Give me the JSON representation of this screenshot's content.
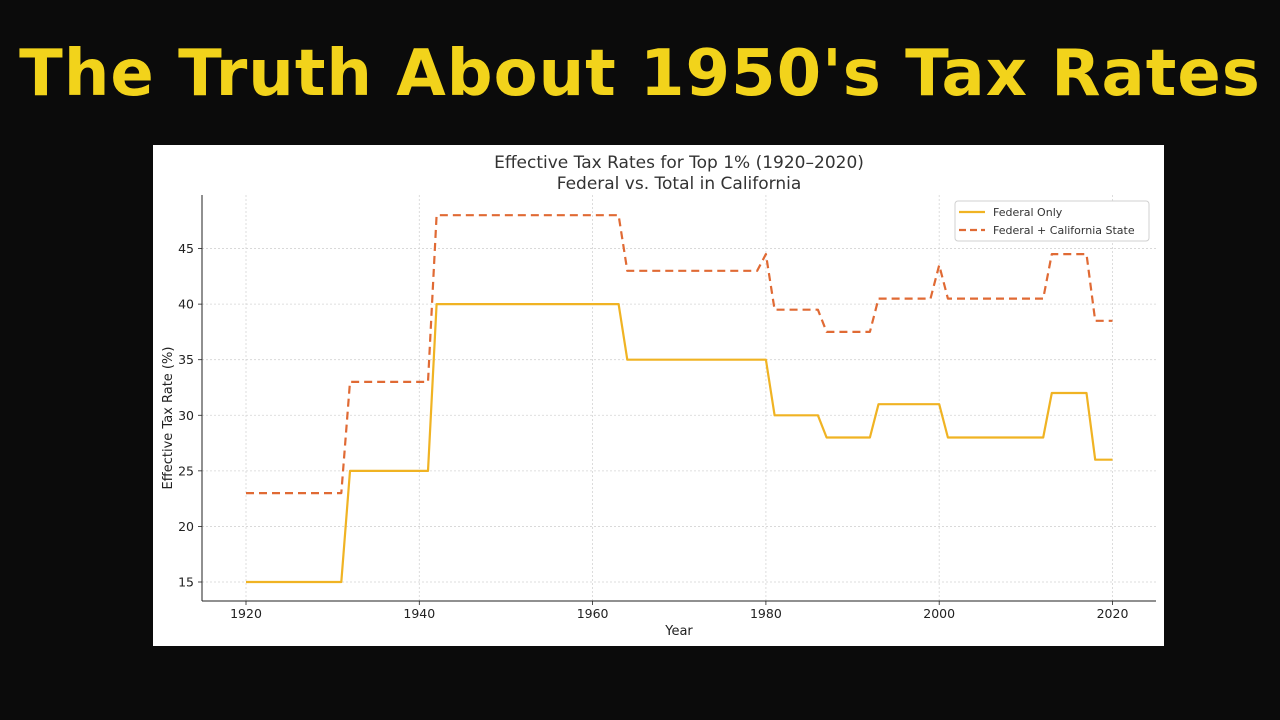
{
  "headline": "The Truth About 1950's Tax Rates",
  "chart_data": {
    "type": "line",
    "title": "Effective Tax Rates for Top 1% (1920–2020)",
    "subtitle": "Federal vs. Total in California",
    "xlabel": "Year",
    "ylabel": "Effective Tax Rate (%)",
    "xlim": [
      1915,
      2025
    ],
    "ylim": [
      13.5,
      49.5
    ],
    "xticks": [
      1920,
      1940,
      1960,
      1980,
      2000,
      2020
    ],
    "yticks": [
      15,
      20,
      25,
      30,
      35,
      40,
      45
    ],
    "grid": true,
    "legend_position": "upper right",
    "x": [
      1920,
      1921,
      1922,
      1923,
      1924,
      1925,
      1926,
      1927,
      1928,
      1929,
      1930,
      1931,
      1932,
      1933,
      1934,
      1935,
      1936,
      1937,
      1938,
      1939,
      1940,
      1941,
      1942,
      1943,
      1944,
      1945,
      1946,
      1947,
      1948,
      1949,
      1950,
      1951,
      1952,
      1953,
      1954,
      1955,
      1956,
      1957,
      1958,
      1959,
      1960,
      1961,
      1962,
      1963,
      1964,
      1965,
      1966,
      1967,
      1968,
      1969,
      1970,
      1971,
      1972,
      1973,
      1974,
      1975,
      1976,
      1977,
      1978,
      1979,
      1980,
      1981,
      1982,
      1983,
      1984,
      1985,
      1986,
      1987,
      1988,
      1989,
      1990,
      1991,
      1992,
      1993,
      1994,
      1995,
      1996,
      1997,
      1998,
      1999,
      2000,
      2001,
      2002,
      2003,
      2004,
      2005,
      2006,
      2007,
      2008,
      2009,
      2010,
      2011,
      2012,
      2013,
      2014,
      2015,
      2016,
      2017,
      2018,
      2019,
      2020
    ],
    "series": [
      {
        "name": "Federal Only",
        "color": "#f0b323",
        "style": "solid",
        "segments": [
          [
            1920,
            1931,
            15
          ],
          [
            1932,
            1941,
            25
          ],
          [
            1942,
            1963,
            40
          ],
          [
            1964,
            1980,
            35
          ],
          [
            1981,
            1986,
            30
          ],
          [
            1987,
            1992,
            28
          ],
          [
            1993,
            2000,
            31
          ],
          [
            2001,
            2012,
            28
          ],
          [
            2013,
            2017,
            32
          ],
          [
            2018,
            2020,
            26
          ]
        ]
      },
      {
        "name": "Federal + California State",
        "color": "#e06a34",
        "style": "dashed",
        "segments": [
          [
            1920,
            1931,
            23
          ],
          [
            1932,
            1941,
            33
          ],
          [
            1942,
            1963,
            48
          ],
          [
            1964,
            1979,
            43
          ],
          [
            1980,
            1980,
            44.5
          ],
          [
            1981,
            1986,
            39.5
          ],
          [
            1987,
            1992,
            37.5
          ],
          [
            1993,
            1999,
            40.5
          ],
          [
            2000,
            2000,
            43.5
          ],
          [
            2001,
            2012,
            40.5
          ],
          [
            2013,
            2017,
            44.5
          ],
          [
            2018,
            2020,
            38.5
          ]
        ]
      }
    ]
  }
}
